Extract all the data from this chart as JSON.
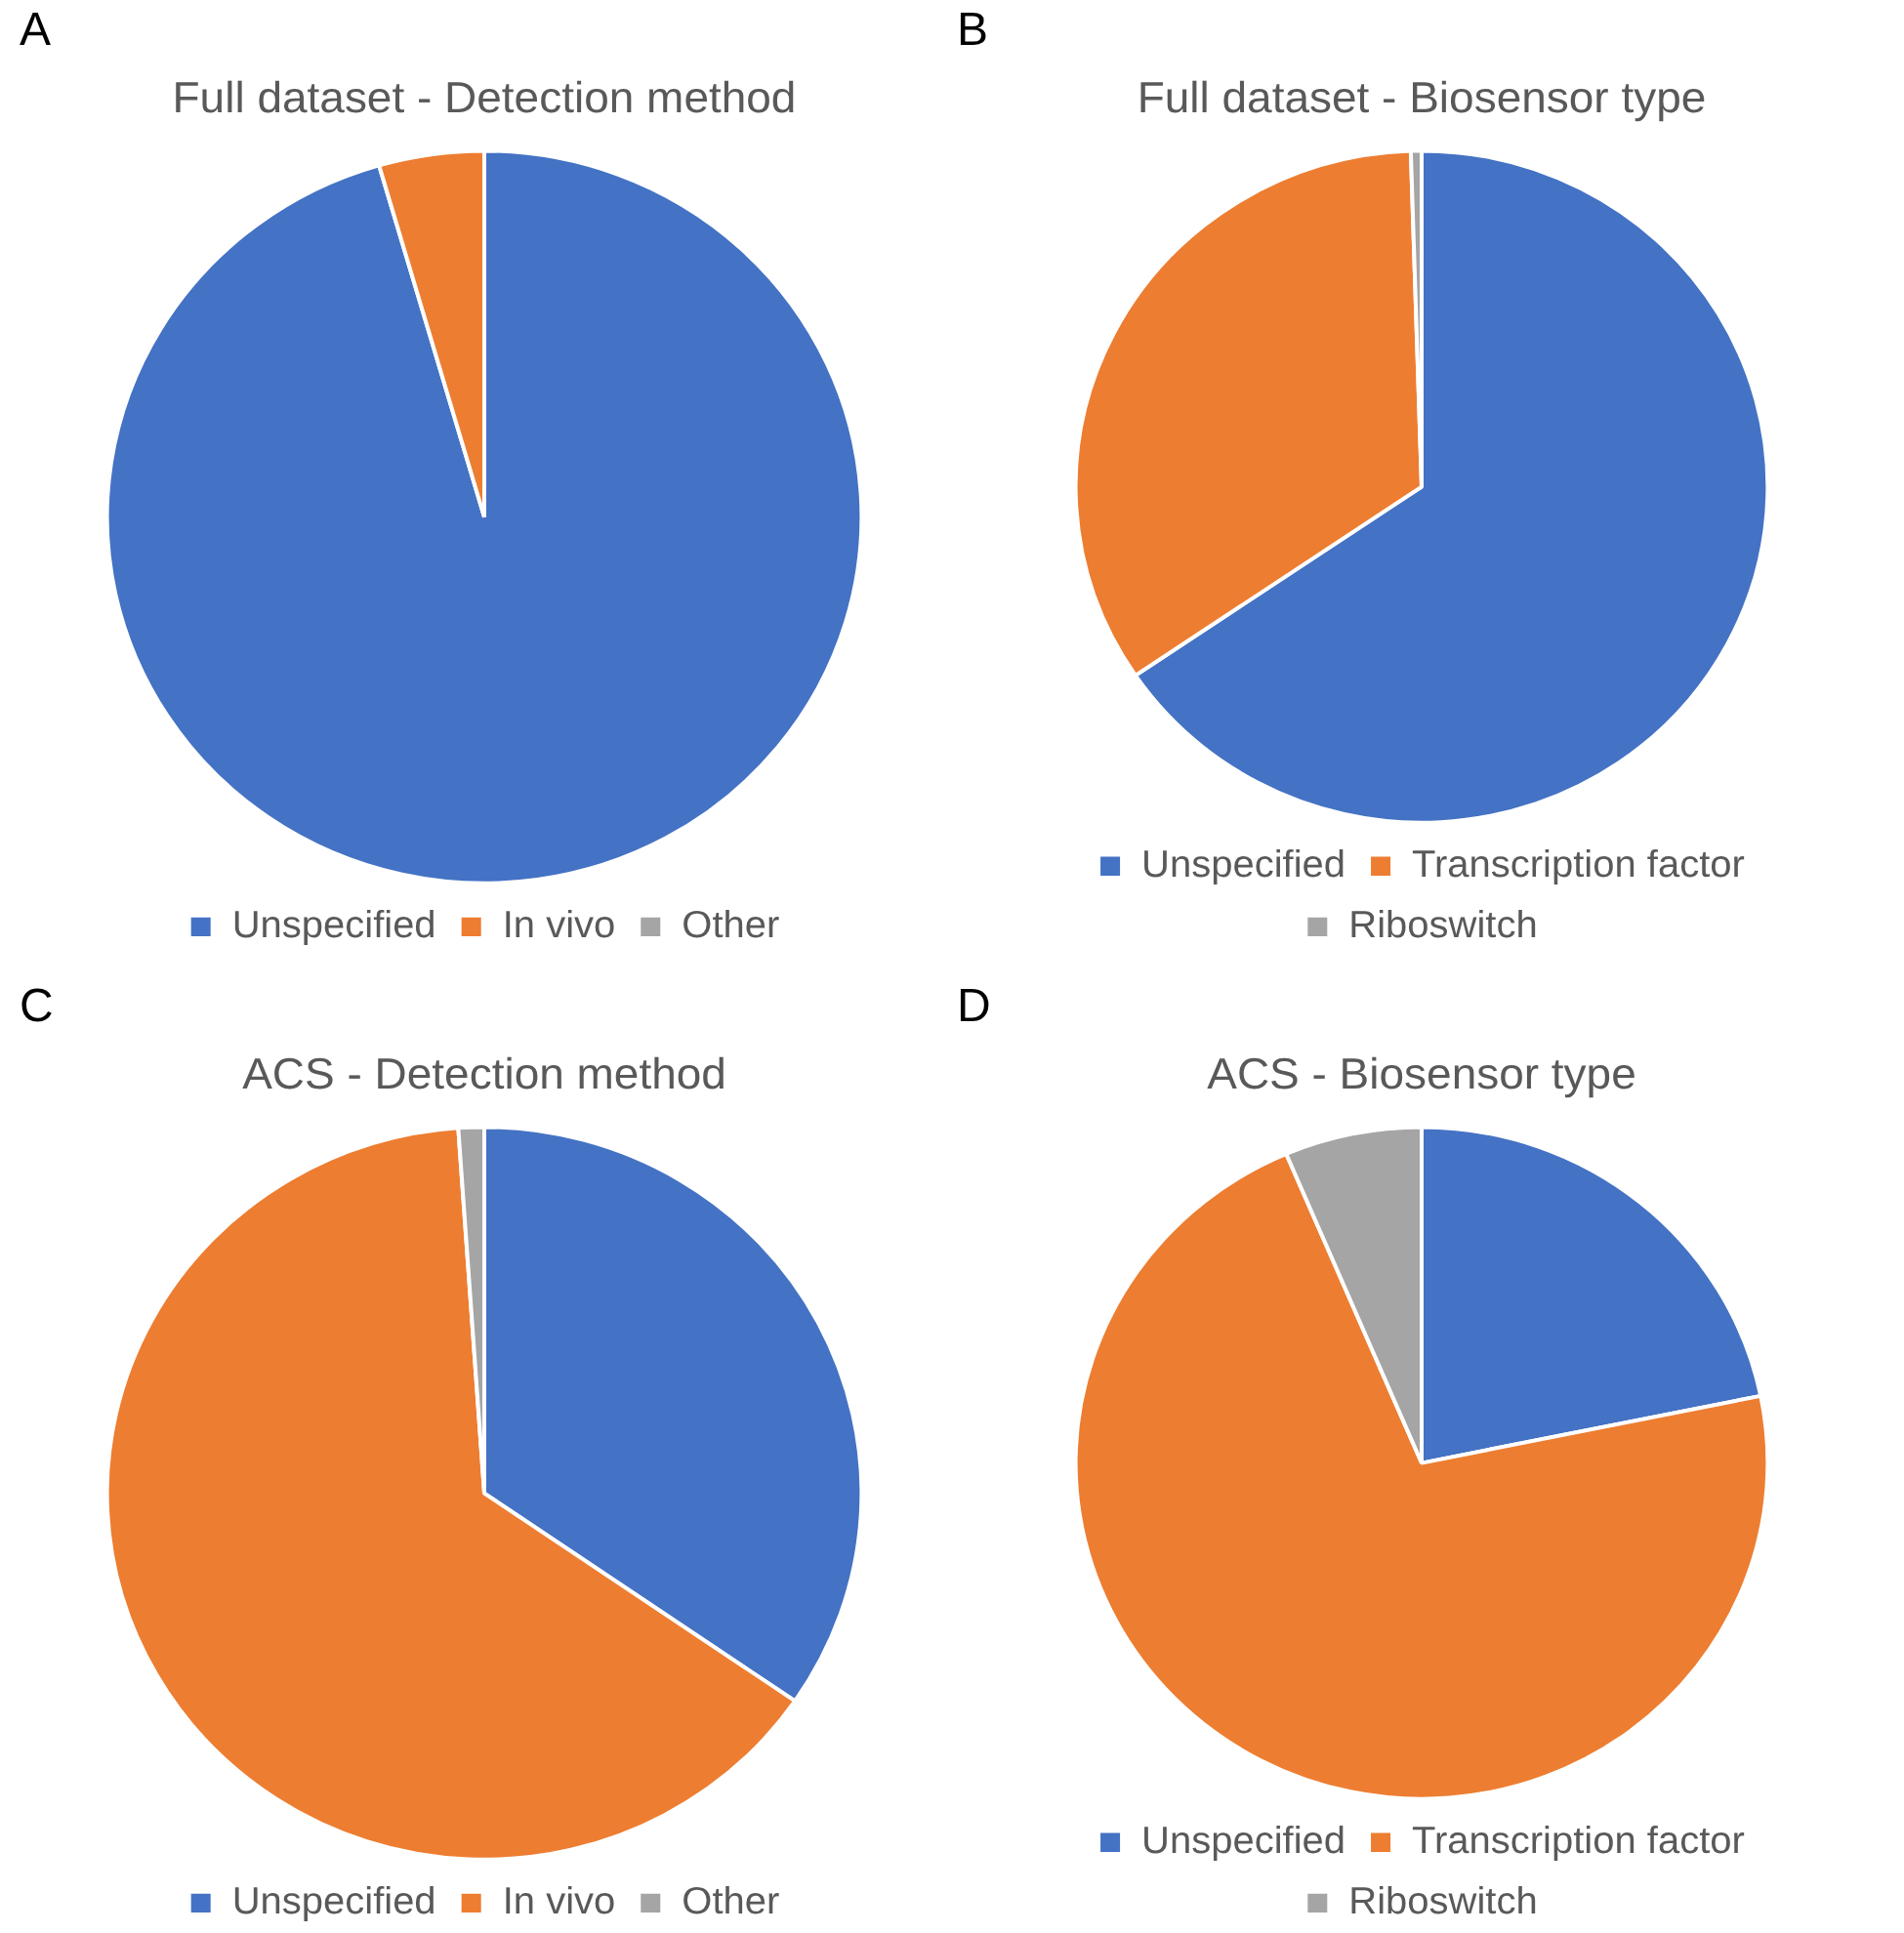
{
  "chart_data": [
    {
      "type": "pie",
      "title": "Full dataset - Detection method",
      "annotations": [
        "A"
      ],
      "categories": [
        "Unspecified",
        "In vivo",
        "Other"
      ],
      "values": [
        95.5,
        4.5,
        0
      ],
      "colors": [
        "#4472c4",
        "#ed7d31",
        "#a5a5a5"
      ],
      "legend": "bottom"
    },
    {
      "type": "pie",
      "title": "Full dataset - Biosensor type",
      "annotations": [
        "B"
      ],
      "categories": [
        "Unspecified",
        "Transcription factor",
        "Riboswitch"
      ],
      "values": [
        65.5,
        34,
        0.5
      ],
      "colors": [
        "#4472c4",
        "#ed7d31",
        "#a5a5a5"
      ],
      "legend": "bottom"
    },
    {
      "type": "pie",
      "title": "ACS - Detection method",
      "annotations": [
        "C"
      ],
      "categories": [
        "Unspecified",
        "In vivo",
        "Other"
      ],
      "values": [
        34.6,
        64.3,
        1.1
      ],
      "colors": [
        "#4472c4",
        "#ed7d31",
        "#a5a5a5"
      ],
      "legend": "bottom"
    },
    {
      "type": "pie",
      "title": "ACS - Biosensor type",
      "annotations": [
        "D"
      ],
      "categories": [
        "Unspecified",
        "Transcription factor",
        "Riboswitch"
      ],
      "values": [
        21.8,
        71.8,
        6.4
      ],
      "colors": [
        "#4472c4",
        "#ed7d31",
        "#a5a5a5"
      ],
      "legend": "bottom"
    }
  ]
}
